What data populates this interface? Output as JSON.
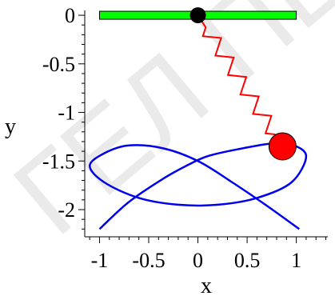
{
  "chart_data": {
    "type": "line",
    "title": "",
    "xlabel": "x",
    "ylabel": "y",
    "xlim": [
      -1.15,
      1.32
    ],
    "ylim": [
      -2.28,
      0.05
    ],
    "x_ticks": [
      -1,
      -0.5,
      0,
      0.5,
      1
    ],
    "x_tick_labels": [
      "-1",
      "-0.5",
      "0",
      "0.5",
      "1"
    ],
    "y_ticks": [
      0,
      -0.5,
      -1,
      -1.5,
      -2
    ],
    "y_tick_labels": [
      "0",
      "-0.5",
      "-1",
      "-1.5",
      "-2"
    ],
    "grid": false,
    "legend": "none",
    "support_bar": {
      "x_start": -1,
      "x_end": 1,
      "y": 0,
      "color": "#00ff00"
    },
    "pivot": {
      "x": 0,
      "y": 0,
      "color": "#000000"
    },
    "mass": {
      "x": 0.86,
      "y": -1.35,
      "color": "#ff0000"
    },
    "spring": {
      "from": [
        0,
        0
      ],
      "to": [
        0.86,
        -1.35
      ],
      "color": "#ff0000"
    },
    "trajectory": {
      "color": "#0000ee",
      "x": [
        -1.0,
        -0.7,
        -0.35,
        -0.1,
        0.1,
        0.4,
        0.75,
        0.95,
        1.1,
        0.95,
        0.6,
        0.2,
        -0.2,
        -0.6,
        -0.95,
        -1.1,
        -0.95,
        -0.7,
        -0.35,
        0.0,
        0.35,
        0.7,
        1.03
      ],
      "y": [
        -2.2,
        -1.92,
        -1.68,
        -1.54,
        -1.45,
        -1.38,
        -1.32,
        -1.33,
        -1.45,
        -1.72,
        -1.88,
        -1.95,
        -1.95,
        -1.88,
        -1.72,
        -1.55,
        -1.42,
        -1.34,
        -1.37,
        -1.5,
        -1.72,
        -1.96,
        -2.2
      ]
    },
    "watermark_text": "ГЕЛ ПЕ"
  }
}
